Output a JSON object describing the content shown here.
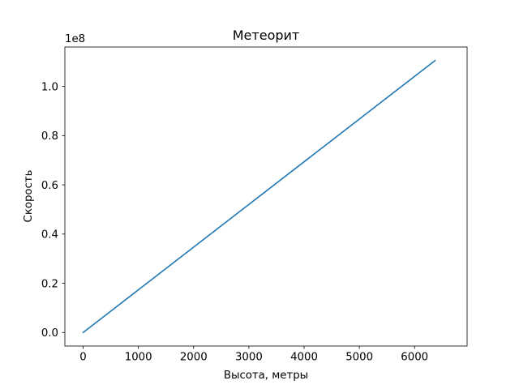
{
  "chart_data": {
    "type": "line",
    "title": "Метеорит",
    "xlabel": "Высота, метры",
    "ylabel": "Скорость",
    "y_offset_label": "1e8",
    "xlim": [
      -331,
      6951
    ],
    "ylim": [
      -0.055,
      1.16
    ],
    "x_ticks": [
      0,
      1000,
      2000,
      3000,
      4000,
      5000,
      6000
    ],
    "x_tick_labels": [
      "0",
      "1000",
      "2000",
      "3000",
      "4000",
      "5000",
      "6000"
    ],
    "y_ticks": [
      0.0,
      0.2,
      0.4,
      0.6,
      0.8,
      1.0
    ],
    "y_tick_labels": [
      "0.0",
      "0.2",
      "0.4",
      "0.6",
      "0.8",
      "1.0"
    ],
    "grid": false,
    "series": [
      {
        "color": "#1f77b4",
        "x": [
          0,
          6371
        ],
        "y": [
          0.0,
          1.105
        ]
      }
    ]
  }
}
